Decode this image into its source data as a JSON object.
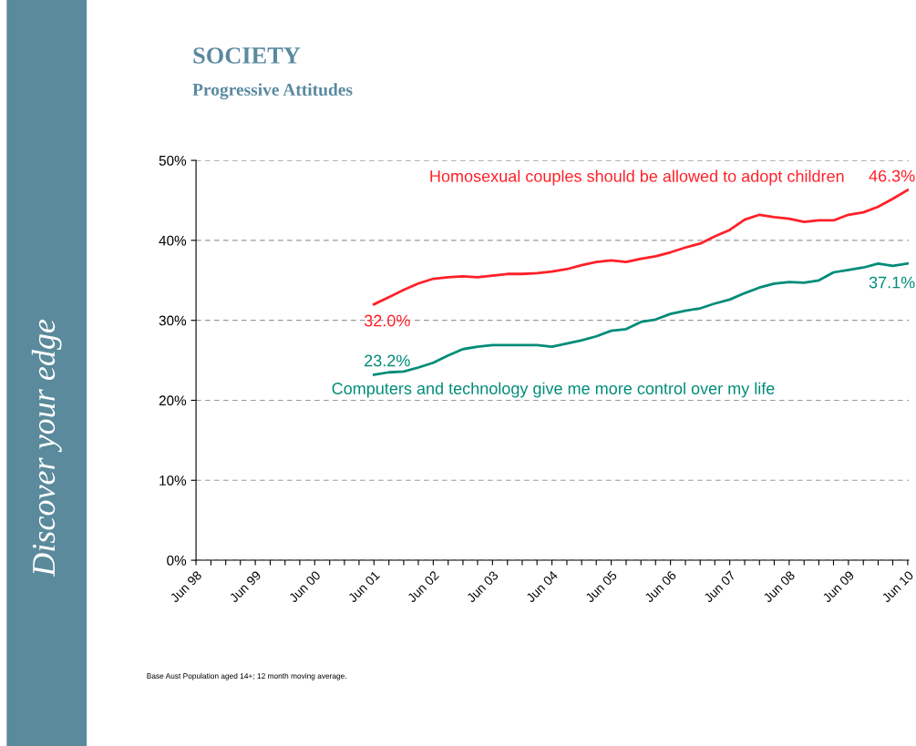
{
  "chart_data": {
    "type": "line",
    "title": "SOCIETY",
    "subtitle": "Progressive Attitudes",
    "annotations": [
      "Discover your edge",
      "Base Aust Population aged 14+; 12 month moving average."
    ],
    "x": [
      "2001-06",
      "2001-09",
      "2001-12",
      "2002-03",
      "2002-06",
      "2002-09",
      "2002-12",
      "2003-03",
      "2003-06",
      "2003-09",
      "2003-12",
      "2004-03",
      "2004-06",
      "2004-09",
      "2004-12",
      "2005-03",
      "2005-06",
      "2005-09",
      "2005-12",
      "2006-03",
      "2006-06",
      "2006-09",
      "2006-12",
      "2007-03",
      "2007-06",
      "2007-09",
      "2007-12",
      "2008-03",
      "2008-06",
      "2008-09",
      "2008-12",
      "2009-03",
      "2009-06",
      "2009-09",
      "2009-12",
      "2010-03",
      "2010-06"
    ],
    "series": [
      {
        "name": "Homosexual couples should be allowed to adopt children",
        "color": "#ff2028",
        "values": [
          32.0,
          32.9,
          33.8,
          34.6,
          35.2,
          35.4,
          35.5,
          35.4,
          35.6,
          35.8,
          35.8,
          35.9,
          36.1,
          36.4,
          36.9,
          37.3,
          37.5,
          37.3,
          37.7,
          38.0,
          38.5,
          39.1,
          39.6,
          40.5,
          41.3,
          42.6,
          43.2,
          42.9,
          42.7,
          42.3,
          42.5,
          42.5,
          43.2,
          43.5,
          44.2,
          45.2,
          46.3
        ],
        "value_labels": [
          "32.0%",
          null,
          null,
          null,
          null,
          null,
          null,
          null,
          null,
          null,
          null,
          null,
          null,
          null,
          null,
          null,
          null,
          null,
          null,
          null,
          null,
          null,
          null,
          null,
          null,
          null,
          null,
          null,
          null,
          null,
          null,
          null,
          null,
          null,
          null,
          null,
          "46.3%"
        ]
      },
      {
        "name": "Computers and technology give me more control over my life",
        "color": "#008c78",
        "values": [
          23.2,
          23.5,
          23.6,
          24.1,
          24.7,
          25.6,
          26.4,
          26.7,
          26.9,
          26.9,
          26.9,
          26.9,
          26.7,
          27.1,
          27.5,
          28.0,
          28.7,
          28.9,
          29.8,
          30.1,
          30.8,
          31.2,
          31.5,
          32.1,
          32.6,
          33.4,
          34.1,
          34.6,
          34.8,
          34.7,
          35.0,
          36.0,
          36.3,
          36.6,
          37.1,
          36.8,
          37.1
        ],
        "value_labels": [
          "23.2%",
          null,
          null,
          null,
          null,
          null,
          null,
          null,
          null,
          null,
          null,
          null,
          null,
          null,
          null,
          null,
          null,
          null,
          null,
          null,
          null,
          null,
          null,
          null,
          null,
          null,
          null,
          null,
          null,
          null,
          null,
          null,
          null,
          null,
          null,
          null,
          "37.1%"
        ]
      }
    ],
    "xlim": [
      "1998-06",
      "2010-06"
    ],
    "xticks": [
      {
        "value": "1998-06",
        "label": "Jun 98"
      },
      {
        "value": "1998-09",
        "label": null
      },
      {
        "value": "1998-12",
        "label": null
      },
      {
        "value": "1999-03",
        "label": null
      },
      {
        "value": "1999-06",
        "label": "Jun 99"
      },
      {
        "value": "1999-09",
        "label": null
      },
      {
        "value": "1999-12",
        "label": null
      },
      {
        "value": "2000-03",
        "label": null
      },
      {
        "value": "2000-06",
        "label": "Jun 00"
      },
      {
        "value": "2000-09",
        "label": null
      },
      {
        "value": "2000-12",
        "label": null
      },
      {
        "value": "2001-03",
        "label": null
      },
      {
        "value": "2001-06",
        "label": "Jun 01"
      },
      {
        "value": "2001-09",
        "label": null
      },
      {
        "value": "2001-12",
        "label": null
      },
      {
        "value": "2002-03",
        "label": null
      },
      {
        "value": "2002-06",
        "label": "Jun 02"
      },
      {
        "value": "2002-09",
        "label": null
      },
      {
        "value": "2002-12",
        "label": null
      },
      {
        "value": "2003-03",
        "label": null
      },
      {
        "value": "2003-06",
        "label": "Jun 03"
      },
      {
        "value": "2003-09",
        "label": null
      },
      {
        "value": "2003-12",
        "label": null
      },
      {
        "value": "2004-03",
        "label": null
      },
      {
        "value": "2004-06",
        "label": "Jun 04"
      },
      {
        "value": "2004-09",
        "label": null
      },
      {
        "value": "2004-12",
        "label": null
      },
      {
        "value": "2005-03",
        "label": null
      },
      {
        "value": "2005-06",
        "label": "Jun 05"
      },
      {
        "value": "2005-09",
        "label": null
      },
      {
        "value": "2005-12",
        "label": null
      },
      {
        "value": "2006-03",
        "label": null
      },
      {
        "value": "2006-06",
        "label": "Jun 06"
      },
      {
        "value": "2006-09",
        "label": null
      },
      {
        "value": "2006-12",
        "label": null
      },
      {
        "value": "2007-03",
        "label": null
      },
      {
        "value": "2007-06",
        "label": "Jun 07"
      },
      {
        "value": "2007-09",
        "label": null
      },
      {
        "value": "2007-12",
        "label": null
      },
      {
        "value": "2008-03",
        "label": null
      },
      {
        "value": "2008-06",
        "label": "Jun 08"
      },
      {
        "value": "2008-09",
        "label": null
      },
      {
        "value": "2008-12",
        "label": null
      },
      {
        "value": "2009-03",
        "label": null
      },
      {
        "value": "2009-06",
        "label": "Jun 09"
      },
      {
        "value": "2009-09",
        "label": null
      },
      {
        "value": "2009-12",
        "label": null
      },
      {
        "value": "2010-03",
        "label": null
      },
      {
        "value": "2010-06",
        "label": "Jun 10"
      }
    ],
    "ylim": [
      0,
      50
    ],
    "yticks": [
      {
        "value": 0,
        "label": "0%"
      },
      {
        "value": 10,
        "label": "10%"
      },
      {
        "value": 20,
        "label": "20%"
      },
      {
        "value": 30,
        "label": "30%"
      },
      {
        "value": 40,
        "label": "40%"
      },
      {
        "value": 50,
        "label": "50%"
      }
    ],
    "grid": "y",
    "legend": false,
    "line_style": "solid",
    "marker": "none"
  }
}
